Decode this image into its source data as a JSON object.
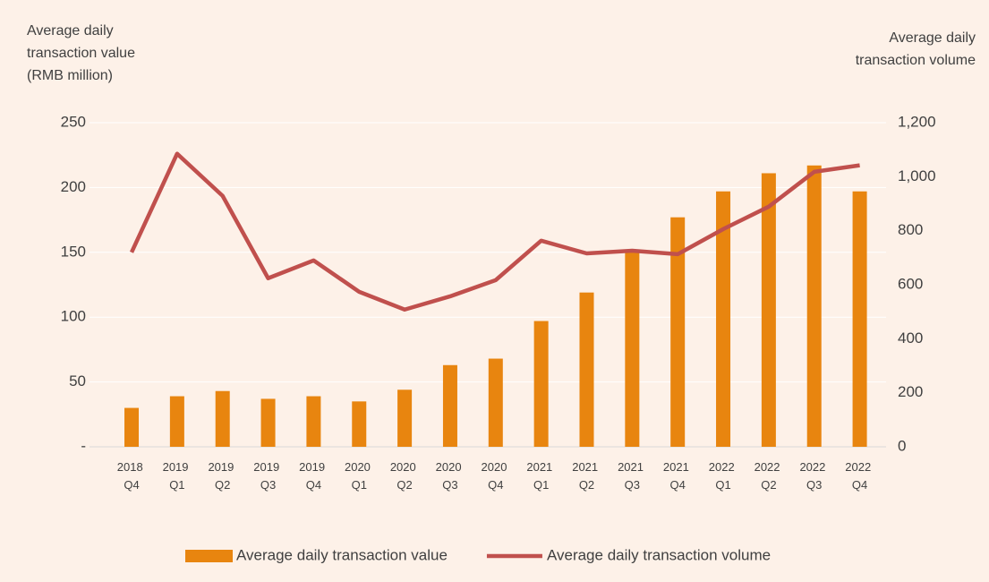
{
  "chart_data": {
    "type": "bar-line",
    "y_label": [
      "Average daily",
      "transaction value",
      "(RMB million)"
    ],
    "y2_label": [
      "Average daily",
      "transaction volume"
    ],
    "categories": [
      "2018 Q4",
      "2019 Q1",
      "2019 Q2",
      "2019 Q3",
      "2019 Q4",
      "2020 Q1",
      "2020 Q2",
      "2020 Q3",
      "2020 Q4",
      "2021 Q1",
      "2021 Q2",
      "2021 Q3",
      "2021 Q4",
      "2022 Q1",
      "2022 Q2",
      "2022 Q3",
      "2022 Q4"
    ],
    "series": [
      {
        "name": "Average daily transaction value",
        "type": "bar",
        "color": "#e8850f",
        "values": [
          30,
          39,
          43,
          37,
          39,
          35,
          44,
          63,
          68,
          97,
          119,
          152,
          177,
          197,
          211,
          217,
          197
        ]
      },
      {
        "name": "Average daily transaction volume",
        "type": "line",
        "axis": "y2",
        "color": "#c0504d",
        "values": [
          720,
          1085,
          929,
          624,
          690,
          574,
          508,
          557,
          617,
          763,
          716,
          726,
          713,
          806,
          889,
          1018,
          1042
        ]
      }
    ],
    "ylim": [
      0,
      250
    ],
    "yticks": [
      {
        "value": 0,
        "label": "-"
      },
      50,
      100,
      150,
      200,
      250
    ],
    "y2lim": [
      0,
      1200
    ],
    "y2ticks": [
      0,
      200,
      400,
      600,
      800,
      {
        "value": 1000,
        "label": "1,000"
      },
      {
        "value": 1200,
        "label": "1,200"
      }
    ],
    "grid": true,
    "legend": "bottom"
  }
}
